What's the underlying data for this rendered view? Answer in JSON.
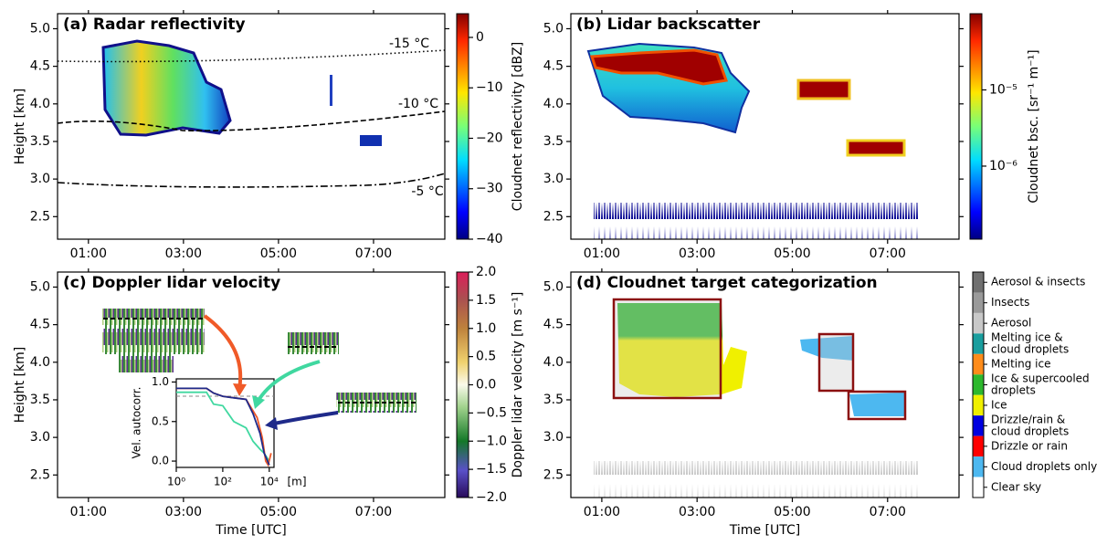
{
  "chart_data": [
    {
      "type": "heatmap",
      "title": "(a) Radar reflectivity",
      "ylabel": "Height [km]",
      "xlim": [
        0.35,
        8.5
      ],
      "xticks": [
        {
          "value": 1,
          "label": "01:00"
        },
        {
          "value": 3,
          "label": "03:00"
        },
        {
          "value": 5,
          "label": "05:00"
        },
        {
          "value": 7,
          "label": "07:00"
        }
      ],
      "ylim": [
        2.2,
        5.2
      ],
      "yticks": [
        {
          "value": 2.5,
          "label": "2.5"
        },
        {
          "value": 3,
          "label": "3.0"
        },
        {
          "value": 3.5,
          "label": "3.5"
        },
        {
          "value": 4,
          "label": "4.0"
        },
        {
          "value": 4.5,
          "label": "4.5"
        },
        {
          "value": 5,
          "label": "5.0"
        }
      ],
      "annotations": [
        "-15 °C",
        "-10 °C",
        "-5 °C"
      ],
      "colorbar": {
        "label": "Cloudnet reflectivity [dBZ]",
        "colormap": "jet",
        "lim": [
          -40,
          4.7
        ],
        "ticks": [
          {
            "value": -40,
            "label": "−40"
          },
          {
            "value": -30,
            "label": "−30"
          },
          {
            "value": -20,
            "label": "−20"
          },
          {
            "value": -10,
            "label": "−10"
          },
          0
        ]
      }
    },
    {
      "type": "heatmap",
      "title": "(b) Lidar backscatter",
      "xlim": [
        0.35,
        8.5
      ],
      "xticks": [
        {
          "value": 1,
          "label": "01:00"
        },
        {
          "value": 3,
          "label": "03:00"
        },
        {
          "value": 5,
          "label": "05:00"
        },
        {
          "value": 7,
          "label": "07:00"
        }
      ],
      "ylim": [
        2.2,
        5.2
      ],
      "yticks": [
        {
          "value": 2.5,
          "label": "2.5"
        },
        {
          "value": 3,
          "label": "3.0"
        },
        {
          "value": 3.5,
          "label": "3.5"
        },
        {
          "value": 4,
          "label": "4.0"
        },
        {
          "value": 4.5,
          "label": "4.5"
        },
        {
          "value": 5,
          "label": "5.0"
        }
      ],
      "colorbar": {
        "label": "Cloudnet bsc. [sr⁻¹ m⁻¹]",
        "colormap": "jet",
        "log": true,
        "lim": [
          1.1e-07,
          0.0001
        ],
        "ticks": [
          {
            "value": 1e-06,
            "label": "10⁻⁶"
          },
          {
            "value": 1e-05,
            "label": "10⁻⁵"
          }
        ]
      }
    },
    {
      "type": "heatmap",
      "title": "(c) Doppler lidar velocity",
      "ylabel": "Height [km]",
      "xlabel": "Time [UTC]",
      "xlim": [
        0.35,
        8.5
      ],
      "xticks": [
        {
          "value": 1,
          "label": "01:00"
        },
        {
          "value": 3,
          "label": "03:00"
        },
        {
          "value": 5,
          "label": "05:00"
        },
        {
          "value": 7,
          "label": "07:00"
        }
      ],
      "ylim": [
        2.2,
        5.2
      ],
      "yticks": [
        {
          "value": 2.5,
          "label": "2.5"
        },
        {
          "value": 3,
          "label": "3.0"
        },
        {
          "value": 3.5,
          "label": "3.5"
        },
        {
          "value": 4,
          "label": "4.0"
        },
        {
          "value": 4.5,
          "label": "4.5"
        },
        {
          "value": 5,
          "label": "5.0"
        }
      ],
      "colorbar": {
        "label": "Doppler lidar velocity [m s⁻¹]",
        "colormap": "doppler",
        "lim": [
          -2,
          2
        ],
        "ticks": [
          {
            "value": -2,
            "label": "−2.0"
          },
          {
            "value": -1.5,
            "label": "−1.5"
          },
          {
            "value": -1,
            "label": "−1.0"
          },
          {
            "value": -0.5,
            "label": "−0.5"
          },
          {
            "value": 0,
            "label": "0.0"
          },
          {
            "value": 0.5,
            "label": "0.5"
          },
          {
            "value": 1,
            "label": "1.0"
          },
          {
            "value": 1.5,
            "label": "1.5"
          },
          {
            "value": 2,
            "label": "2.0"
          }
        ]
      },
      "inset": {
        "type": "line",
        "ylabel": "Vel. autocorr.",
        "xlabel": "[m]",
        "log_x": true,
        "xlim": [
          1,
          16000
        ],
        "xticks": [
          {
            "value": 1,
            "label": "10⁰"
          },
          {
            "value": 100,
            "label": "10²"
          },
          {
            "value": 10000,
            "label": "10⁴"
          }
        ],
        "ylim": [
          -0.08,
          1.04
        ],
        "yticks": [
          {
            "value": 0,
            "label": "0.0"
          },
          {
            "value": 0.5,
            "label": "0.5"
          },
          {
            "value": 1,
            "label": "1.0"
          }
        ],
        "threshold": 0.82,
        "series": [
          {
            "color": "#40d8a0",
            "x": [
              1,
              20,
              40,
              100,
              300,
              1000,
              2000,
              4000,
              6000,
              10000
            ],
            "values": [
              0.87,
              0.87,
              0.72,
              0.7,
              0.5,
              0.42,
              0.25,
              0.15,
              0.1,
              0.0
            ]
          },
          {
            "color": "#f05a28",
            "x": [
              1,
              20,
              40,
              100,
              1000,
              3000,
              5000,
              7000,
              9000,
              12000
            ],
            "values": [
              0.92,
              0.92,
              0.86,
              0.82,
              0.78,
              0.55,
              0.3,
              0.0,
              -0.05,
              0.1
            ]
          },
          {
            "color": "#1f2a8a",
            "x": [
              1,
              20,
              40,
              100,
              300,
              1000,
              2000,
              4000,
              6000,
              10000
            ],
            "values": [
              0.92,
              0.92,
              0.86,
              0.82,
              0.8,
              0.78,
              0.6,
              0.35,
              0.1,
              -0.05
            ]
          }
        ]
      }
    },
    {
      "type": "heatmap",
      "title": "(d) Cloudnet target categorization",
      "xlabel": "Time [UTC]",
      "xlim": [
        0.35,
        8.5
      ],
      "xticks": [
        {
          "value": 1,
          "label": "01:00"
        },
        {
          "value": 3,
          "label": "03:00"
        },
        {
          "value": 5,
          "label": "05:00"
        },
        {
          "value": 7,
          "label": "07:00"
        }
      ],
      "ylim": [
        2.2,
        5.2
      ],
      "yticks": [
        {
          "value": 2.5,
          "label": "2.5"
        },
        {
          "value": 3,
          "label": "3.0"
        },
        {
          "value": 3.5,
          "label": "3.5"
        },
        {
          "value": 4,
          "label": "4.0"
        },
        {
          "value": 4.5,
          "label": "4.5"
        },
        {
          "value": 5,
          "label": "5.0"
        }
      ],
      "colorbar": {
        "categories": [
          [
            "Aerosol & insects"
          ],
          [
            "Insects"
          ],
          [
            "Aerosol"
          ],
          [
            "Melting ice &",
            "cloud droplets"
          ],
          [
            "Melting ice"
          ],
          [
            "Ice & supercooled",
            "droplets"
          ],
          [
            "Ice"
          ],
          [
            "Drizzle/rain &",
            "cloud droplets"
          ],
          [
            "Drizzle or rain"
          ],
          [
            "Cloud droplets only"
          ],
          [
            "Clear sky"
          ]
        ],
        "colors": [
          "#707070",
          "#9a9a9a",
          "#c8c8c8",
          "#1a9e9e",
          "#ff8c1a",
          "#2db82d",
          "#f0f000",
          "#0000e0",
          "#ff0000",
          "#4db8f0",
          "#ffffff"
        ]
      }
    }
  ]
}
